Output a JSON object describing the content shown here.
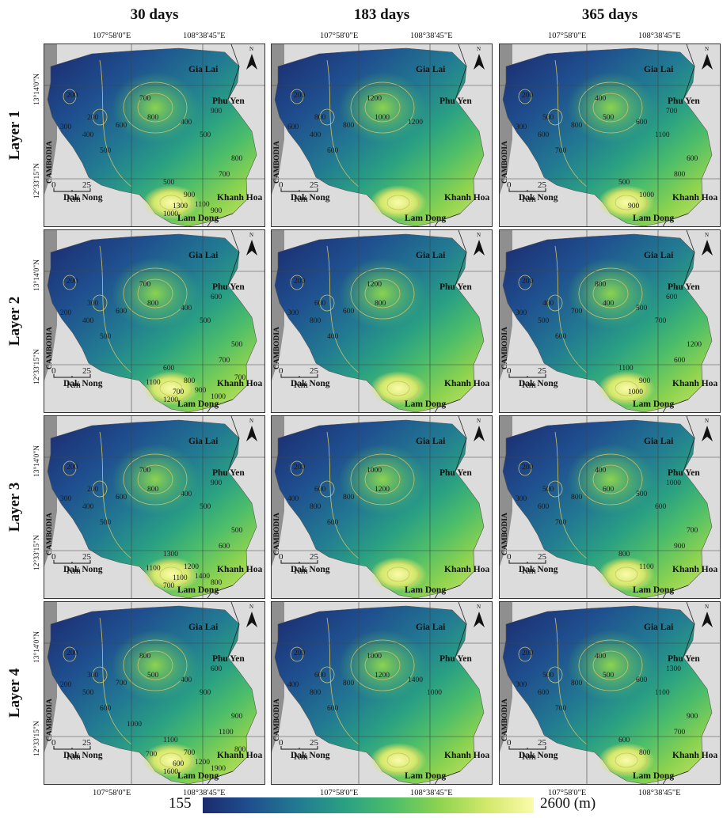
{
  "columns": [
    "30 days",
    "183 days",
    "365 days"
  ],
  "rows": [
    "Layer 1",
    "Layer 2",
    "Layer 3",
    "Layer 4"
  ],
  "top_longitudes": [
    "107°58'0\"E",
    "108°38'45\"E"
  ],
  "bottom_longitudes": [
    "107°58'0\"E",
    "108°38'45\"E"
  ],
  "left_latitudes": [
    "13°14'0\"N",
    "12°33'15\"N"
  ],
  "right_latitudes": [
    "13°14'0\"N",
    "12°33'15\"N"
  ],
  "place_labels": {
    "gia_lai": "Gia Lai",
    "phu_yen": "Phu Yen",
    "dak_nong": "Dak Nong",
    "khanh_hoa": "Khanh Hoa",
    "lam_dong": "Lam Dong",
    "cambodia": "CAMBODIA"
  },
  "scale": {
    "zero": "0",
    "max": "25",
    "unit": "Km"
  },
  "north_label": "N",
  "legend": {
    "min": "155",
    "max": "2600 (m)",
    "colors": [
      "#1b2a6e",
      "#1f4f8f",
      "#227a92",
      "#2aa083",
      "#4cbd6a",
      "#8dd34f",
      "#d2e86a",
      "#fbfbaa"
    ]
  },
  "panels": [
    {
      "row": 0,
      "col": 0,
      "labels": [
        "200",
        "300",
        "200",
        "400",
        "500",
        "600",
        "700",
        "800",
        "400",
        "500",
        "900",
        "700",
        "800",
        "500",
        "900",
        "1300",
        "1100",
        "1000",
        "900"
      ]
    },
    {
      "row": 0,
      "col": 1,
      "labels": [
        "200",
        "600",
        "800",
        "400",
        "600",
        "800",
        "1200",
        "1000",
        "1200"
      ]
    },
    {
      "row": 0,
      "col": 2,
      "labels": [
        "200",
        "300",
        "500",
        "600",
        "700",
        "800",
        "400",
        "500",
        "600",
        "1100",
        "700",
        "800",
        "600",
        "500",
        "1000",
        "900"
      ]
    },
    {
      "row": 1,
      "col": 0,
      "labels": [
        "200",
        "200",
        "300",
        "400",
        "500",
        "600",
        "700",
        "800",
        "400",
        "500",
        "600",
        "700",
        "500",
        "600",
        "800",
        "700",
        "900",
        "1200",
        "1000",
        "1100",
        "700"
      ]
    },
    {
      "row": 1,
      "col": 1,
      "labels": [
        "200",
        "300",
        "600",
        "800",
        "400",
        "600",
        "1200",
        "800"
      ]
    },
    {
      "row": 1,
      "col": 2,
      "labels": [
        "200",
        "300",
        "400",
        "500",
        "600",
        "700",
        "800",
        "400",
        "500",
        "700",
        "600",
        "600",
        "1200",
        "1100",
        "900",
        "1000"
      ]
    },
    {
      "row": 2,
      "col": 0,
      "labels": [
        "200",
        "300",
        "200",
        "400",
        "500",
        "600",
        "700",
        "800",
        "400",
        "500",
        "900",
        "600",
        "500",
        "1300",
        "1200",
        "1100",
        "1400",
        "700",
        "800",
        "1100"
      ]
    },
    {
      "row": 2,
      "col": 1,
      "labels": [
        "200",
        "400",
        "600",
        "800",
        "600",
        "800",
        "1000",
        "1200"
      ]
    },
    {
      "row": 2,
      "col": 2,
      "labels": [
        "200",
        "300",
        "500",
        "600",
        "700",
        "800",
        "400",
        "600",
        "500",
        "600",
        "1000",
        "900",
        "700",
        "800",
        "1100"
      ]
    },
    {
      "row": 3,
      "col": 0,
      "labels": [
        "200",
        "200",
        "300",
        "500",
        "600",
        "700",
        "800",
        "500",
        "400",
        "900",
        "600",
        "1100",
        "900",
        "1100",
        "700",
        "600",
        "1200",
        "1600",
        "1900",
        "700",
        "800",
        "1000"
      ]
    },
    {
      "row": 3,
      "col": 1,
      "labels": [
        "200",
        "400",
        "600",
        "800",
        "600",
        "800",
        "1000",
        "1200",
        "1400",
        "1000"
      ]
    },
    {
      "row": 3,
      "col": 2,
      "labels": [
        "200",
        "300",
        "500",
        "600",
        "700",
        "800",
        "400",
        "500",
        "600",
        "1100",
        "1300",
        "700",
        "900",
        "600",
        "800"
      ]
    }
  ]
}
